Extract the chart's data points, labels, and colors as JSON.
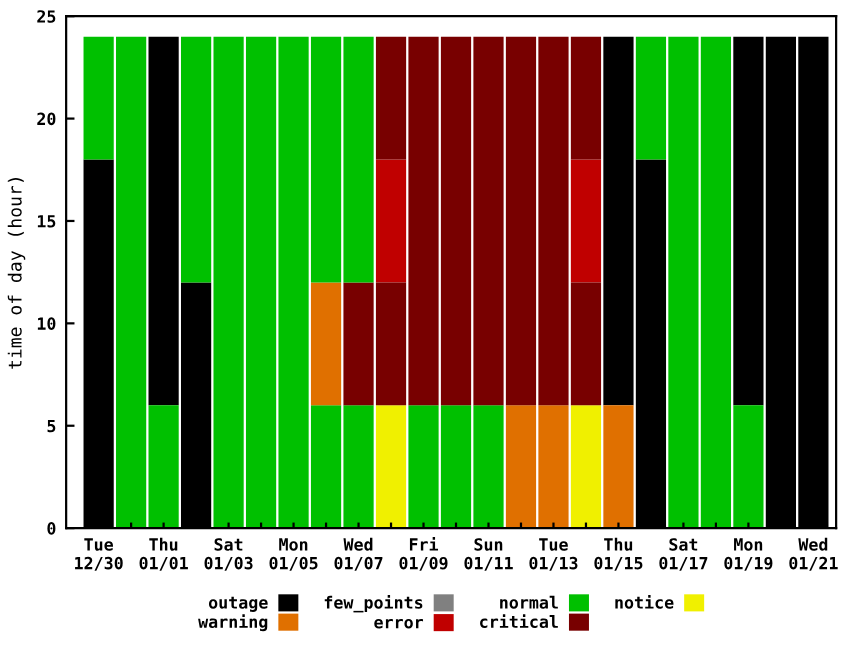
{
  "chart_data": {
    "type": "bar",
    "ylabel": "time of day (hour)",
    "categories": [
      "Tue\n12/30",
      null,
      "Thu\n01/01",
      null,
      "Sat\n01/03",
      null,
      "Mon\n01/05",
      null,
      "Wed\n01/07",
      null,
      "Fri\n01/09",
      null,
      "Sun\n01/11",
      null,
      "Tue\n01/13",
      null,
      "Thu\n01/15",
      null,
      "Sat\n01/17",
      null,
      "Mon\n01/19",
      null,
      "Wed\n01/21"
    ],
    "ylim": [
      0,
      25
    ],
    "yticks": [
      0,
      5,
      10,
      15,
      20,
      25
    ],
    "grid": false,
    "legend": "bottom",
    "series": [
      {
        "name": "outage",
        "color": "#000000",
        "base": [
          0,
          null,
          6,
          0,
          null,
          null,
          null,
          null,
          null,
          null,
          null,
          null,
          null,
          null,
          null,
          null,
          6,
          0,
          null,
          null,
          6,
          0,
          0
        ],
        "values": [
          18,
          null,
          18,
          12,
          null,
          null,
          null,
          null,
          null,
          null,
          null,
          null,
          null,
          null,
          null,
          null,
          18,
          18,
          null,
          null,
          18,
          24,
          24
        ]
      },
      {
        "name": "few_points",
        "color": "#808080",
        "base": [
          null,
          null,
          null,
          null,
          null,
          null,
          null,
          null,
          null,
          null,
          null,
          null,
          null,
          null,
          null,
          null,
          null,
          null,
          null,
          null,
          null,
          null,
          null
        ],
        "values": [
          null,
          null,
          null,
          null,
          null,
          null,
          null,
          null,
          null,
          null,
          null,
          null,
          null,
          null,
          null,
          null,
          null,
          null,
          null,
          null,
          null,
          null,
          null
        ]
      },
      {
        "name": "normal",
        "color": "#00c000",
        "base": [
          18,
          0,
          0,
          12,
          0,
          0,
          0,
          0,
          0,
          null,
          0,
          0,
          0,
          null,
          null,
          null,
          null,
          18,
          0,
          0,
          0,
          null,
          null
        ],
        "values": [
          6,
          24,
          6,
          12,
          24,
          24,
          24,
          6,
          6,
          null,
          6,
          6,
          6,
          null,
          null,
          null,
          null,
          6,
          24,
          24,
          6,
          null,
          null
        ]
      },
      {
        "name": "notice",
        "color": "#f0f000",
        "base": [
          null,
          null,
          null,
          null,
          null,
          null,
          null,
          null,
          null,
          0,
          null,
          null,
          null,
          null,
          null,
          0,
          null,
          null,
          null,
          null,
          null,
          null,
          null
        ],
        "values": [
          null,
          null,
          null,
          null,
          null,
          null,
          null,
          null,
          null,
          6,
          null,
          null,
          null,
          null,
          null,
          6,
          null,
          null,
          null,
          null,
          null,
          null,
          null
        ]
      },
      {
        "name": "warning",
        "color": "#e07000",
        "base": [
          null,
          null,
          null,
          null,
          null,
          null,
          null,
          6,
          null,
          null,
          null,
          null,
          null,
          0,
          0,
          null,
          0,
          null,
          null,
          null,
          null,
          null,
          null
        ],
        "values": [
          null,
          null,
          null,
          null,
          null,
          null,
          null,
          6,
          null,
          null,
          null,
          null,
          null,
          6,
          6,
          null,
          6,
          null,
          null,
          null,
          null,
          null,
          null
        ]
      },
      {
        "name": "error",
        "color": "#c00000",
        "base": [
          null,
          null,
          null,
          null,
          null,
          null,
          null,
          null,
          null,
          12,
          null,
          null,
          null,
          null,
          null,
          12,
          null,
          null,
          null,
          null,
          null,
          null,
          null
        ],
        "values": [
          null,
          null,
          null,
          null,
          null,
          null,
          null,
          null,
          null,
          6,
          null,
          null,
          null,
          null,
          null,
          6,
          null,
          null,
          null,
          null,
          null,
          null,
          null
        ]
      },
      {
        "name": "critical",
        "color": "#780000",
        "base": [
          null,
          null,
          null,
          null,
          null,
          null,
          null,
          null,
          6,
          6,
          6,
          6,
          6,
          6,
          6,
          6,
          null,
          null,
          null,
          null,
          null,
          null,
          null
        ],
        "values": [
          null,
          null,
          null,
          null,
          null,
          null,
          null,
          null,
          6,
          6,
          18,
          18,
          18,
          18,
          18,
          6,
          null,
          null,
          null,
          null,
          null,
          null,
          null
        ]
      },
      {
        "color": "#00c000",
        "base": [
          null,
          null,
          null,
          null,
          null,
          null,
          null,
          12,
          12,
          null,
          null,
          null,
          null,
          null,
          null,
          null,
          null,
          null,
          null,
          null,
          null,
          null,
          null
        ],
        "values": [
          null,
          null,
          null,
          null,
          null,
          null,
          null,
          12,
          12,
          null,
          null,
          null,
          null,
          null,
          null,
          null,
          null,
          null,
          null,
          null,
          null,
          null,
          null
        ]
      },
      {
        "color": "#780000",
        "base": [
          null,
          null,
          null,
          null,
          null,
          null,
          null,
          null,
          null,
          18,
          null,
          null,
          null,
          null,
          null,
          18,
          null,
          null,
          null,
          null,
          null,
          null,
          null
        ],
        "values": [
          null,
          null,
          null,
          null,
          null,
          null,
          null,
          null,
          null,
          6,
          null,
          null,
          null,
          null,
          null,
          6,
          null,
          null,
          null,
          null,
          null,
          null,
          null
        ]
      }
    ]
  }
}
